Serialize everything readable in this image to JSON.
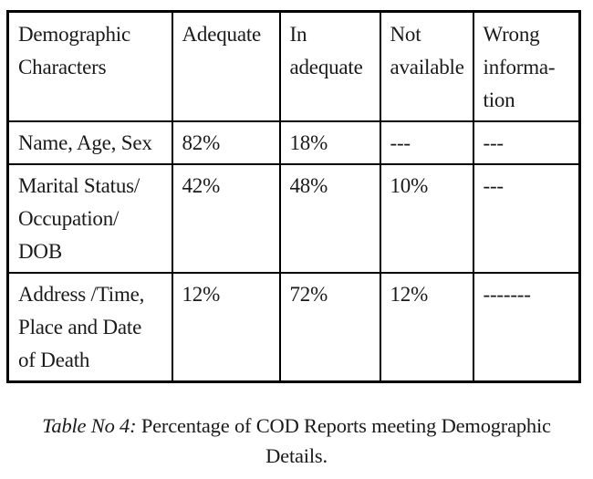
{
  "table": {
    "columns": [
      "Demographic\nCharacters",
      "Adequate",
      "In\nadequate",
      "Not\navailable",
      "Wrong\ninforma-\ntion"
    ],
    "rows": [
      {
        "characters": "Name, Age, Sex",
        "adequate": "82%",
        "inadequate": "18%",
        "not_available": "---",
        "wrong_information": "---"
      },
      {
        "characters": "Marital Status/\nOccupation/\nDOB",
        "adequate": "42%",
        "inadequate": "48%",
        "not_available": "10%",
        "wrong_information": "---"
      },
      {
        "characters": "Address /Time,\nPlace and Date\nof Death",
        "adequate": "12%",
        "inadequate": "72%",
        "not_available": "12%",
        "wrong_information": "-------"
      }
    ]
  },
  "caption": {
    "label": "Table No 4:",
    "text": " Percentage of COD Reports meeting Demographic\nDetails."
  }
}
